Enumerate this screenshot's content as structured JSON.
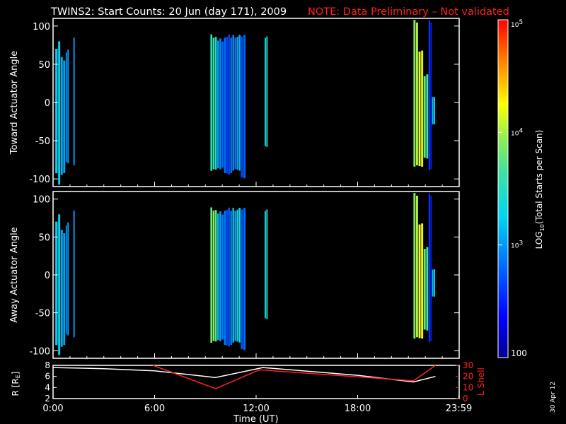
{
  "header": {
    "title": "TWINS2: Start Counts: 20 Jun (day 171), 2009",
    "note": "NOTE: Data Preliminary – Not validated",
    "note_color": "#ff2020"
  },
  "side_stamp": "30 Apr 12",
  "chart_data": [
    {
      "type": "heatmap",
      "panel": "toward",
      "ylabel": "Toward Actuator Angle",
      "ylim": [
        -110,
        110
      ],
      "yticks": [
        100,
        50,
        0,
        -50,
        -100
      ],
      "xlim": [
        0,
        24
      ],
      "color_scale": "log",
      "bands": [
        {
          "t0": 0.13,
          "t1": 0.3,
          "ylo": -95,
          "yhi": 75,
          "log": 3.1
        },
        {
          "t0": 0.3,
          "t1": 0.45,
          "ylo": -110,
          "yhi": 85,
          "log": 3.2
        },
        {
          "t0": 0.45,
          "t1": 0.75,
          "ylo": -95,
          "yhi": 60,
          "log": 3.15
        },
        {
          "t0": 0.75,
          "t1": 0.95,
          "ylo": -80,
          "yhi": 70,
          "log": 3.05
        },
        {
          "t0": 1.2,
          "t1": 1.3,
          "ylo": -85,
          "yhi": 90,
          "log": 3.1
        },
        {
          "t0": 9.3,
          "t1": 9.7,
          "ylo": -90,
          "yhi": 90,
          "log": 3.5
        },
        {
          "t0": 9.7,
          "t1": 10.1,
          "ylo": -88,
          "yhi": 85,
          "log": 2.9
        },
        {
          "t0": 10.1,
          "t1": 10.6,
          "ylo": -95,
          "yhi": 90,
          "log": 2.75
        },
        {
          "t0": 10.6,
          "t1": 11.1,
          "ylo": -90,
          "yhi": 90,
          "log": 3.0
        },
        {
          "t0": 11.1,
          "t1": 11.4,
          "ylo": -100,
          "yhi": 90,
          "log": 2.8
        },
        {
          "t0": 12.5,
          "t1": 12.7,
          "ylo": -60,
          "yhi": 90,
          "log": 3.4
        },
        {
          "t0": 21.3,
          "t1": 21.6,
          "ylo": -85,
          "yhi": 110,
          "log": 3.9
        },
        {
          "t0": 21.6,
          "t1": 21.9,
          "ylo": -85,
          "yhi": 70,
          "log": 4.1
        },
        {
          "t0": 21.9,
          "t1": 22.2,
          "ylo": -75,
          "yhi": 40,
          "log": 3.7
        },
        {
          "t0": 22.2,
          "t1": 22.4,
          "ylo": -90,
          "yhi": 110,
          "log": 2.6
        },
        {
          "t0": 22.4,
          "t1": 22.6,
          "ylo": -30,
          "yhi": 10,
          "log": 3.3
        }
      ]
    },
    {
      "type": "heatmap",
      "panel": "away",
      "ylabel": "Away Actuator Angle",
      "ylim": [
        -110,
        110
      ],
      "yticks": [
        100,
        50,
        0,
        -50,
        -100
      ],
      "xlim": [
        0,
        24
      ],
      "color_scale": "log",
      "bands": [
        {
          "t0": 0.13,
          "t1": 0.3,
          "ylo": -95,
          "yhi": 75,
          "log": 3.1
        },
        {
          "t0": 0.3,
          "t1": 0.45,
          "ylo": -108,
          "yhi": 85,
          "log": 3.2
        },
        {
          "t0": 0.45,
          "t1": 0.75,
          "ylo": -95,
          "yhi": 60,
          "log": 3.15
        },
        {
          "t0": 0.75,
          "t1": 0.95,
          "ylo": -80,
          "yhi": 70,
          "log": 3.05
        },
        {
          "t0": 1.2,
          "t1": 1.3,
          "ylo": -85,
          "yhi": 90,
          "log": 3.1
        },
        {
          "t0": 9.3,
          "t1": 9.7,
          "ylo": -90,
          "yhi": 90,
          "log": 3.8
        },
        {
          "t0": 9.7,
          "t1": 10.1,
          "ylo": -88,
          "yhi": 85,
          "log": 3.0
        },
        {
          "t0": 10.1,
          "t1": 10.6,
          "ylo": -95,
          "yhi": 90,
          "log": 2.8
        },
        {
          "t0": 10.6,
          "t1": 11.1,
          "ylo": -90,
          "yhi": 90,
          "log": 3.2
        },
        {
          "t0": 11.1,
          "t1": 11.4,
          "ylo": -100,
          "yhi": 90,
          "log": 2.85
        },
        {
          "t0": 12.5,
          "t1": 12.7,
          "ylo": -60,
          "yhi": 90,
          "log": 3.4
        },
        {
          "t0": 21.3,
          "t1": 21.6,
          "ylo": -85,
          "yhi": 110,
          "log": 3.9
        },
        {
          "t0": 21.6,
          "t1": 21.9,
          "ylo": -85,
          "yhi": 70,
          "log": 4.15
        },
        {
          "t0": 21.9,
          "t1": 22.2,
          "ylo": -75,
          "yhi": 40,
          "log": 3.7
        },
        {
          "t0": 22.2,
          "t1": 22.4,
          "ylo": -90,
          "yhi": 110,
          "log": 2.6
        },
        {
          "t0": 22.4,
          "t1": 22.6,
          "ylo": -30,
          "yhi": 10,
          "log": 3.3
        }
      ]
    },
    {
      "type": "line",
      "panel": "orbit",
      "x_ticks": [
        "0:00",
        "6:00",
        "12:00",
        "18:00",
        "23:59"
      ],
      "x_tick_values": [
        0,
        6,
        12,
        18,
        23.98
      ],
      "xlabel": "Time (UT)",
      "xlim": [
        0,
        24
      ],
      "left_axis": {
        "label": "R [R",
        "label_sub": "E",
        "label_end": "]",
        "ylim": [
          2,
          8
        ],
        "ticks": [
          2,
          4,
          6,
          8
        ]
      },
      "right_axis": {
        "label": "L Shell",
        "ylim": [
          0,
          30
        ],
        "ticks": [
          0,
          10,
          20,
          30
        ],
        "color": "#ff2020"
      },
      "series": [
        {
          "axis": "left",
          "color": "#ffffff",
          "x": [
            0,
            3,
            6,
            9.6,
            12.4,
            18,
            21.3,
            22.6
          ],
          "y": [
            7.6,
            7.4,
            7.0,
            5.8,
            7.6,
            6.2,
            5.0,
            6.0
          ]
        },
        {
          "axis": "right",
          "color": "#ff2020",
          "x": [
            5.9,
            9.6,
            12.2,
            21.3,
            22.6
          ],
          "y": [
            30,
            9,
            26,
            16,
            30
          ]
        }
      ]
    }
  ],
  "colorbar": {
    "label": "LOG",
    "label_sub": "10",
    "label_rest": "(Total Starts per Scan)",
    "range_log": [
      2,
      5
    ],
    "tick_labels": [
      {
        "base": "10",
        "exp": "5",
        "log": 5
      },
      {
        "base": "10",
        "exp": "4",
        "log": 4
      },
      {
        "base": "10",
        "exp": "3",
        "log": 3
      },
      {
        "base": "100",
        "exp": "",
        "log": 2
      }
    ]
  }
}
